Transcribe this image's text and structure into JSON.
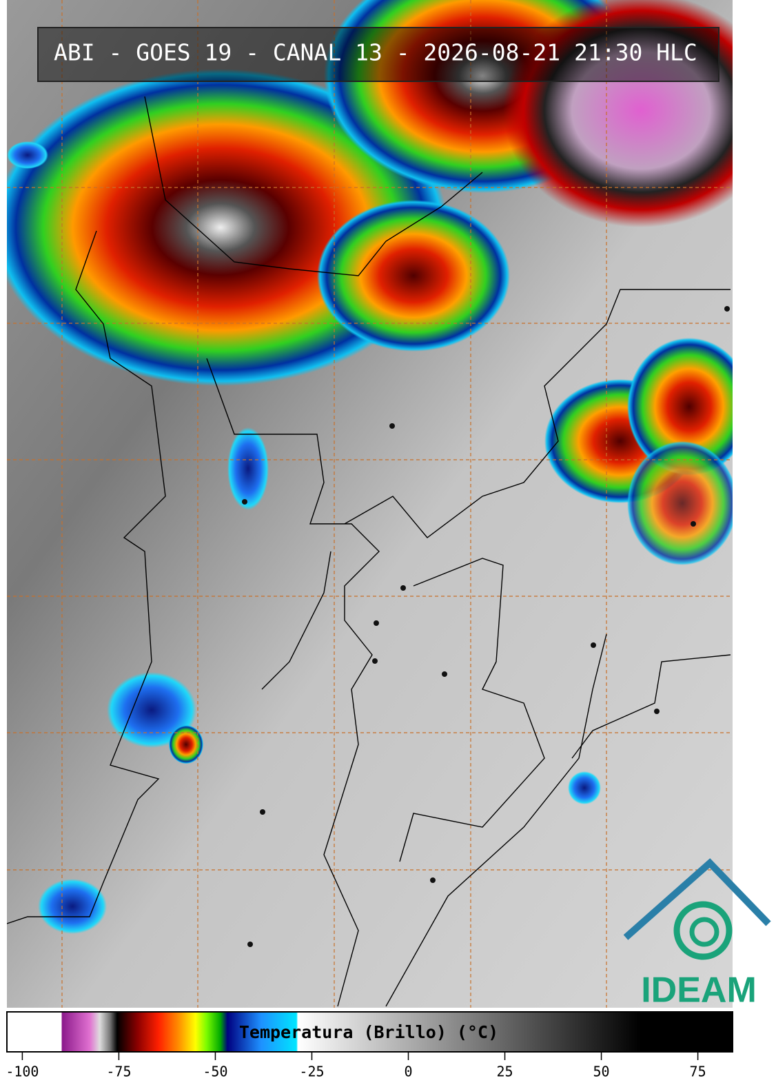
{
  "header": {
    "title": "ABI - GOES 19 - CANAL 13 - 2026-08-21 21:30 HLC"
  },
  "colorbar": {
    "label": "Temperatura (Brillo) (°C)",
    "lim": [
      -104,
      84
    ],
    "ticks": [
      -100,
      -75,
      -50,
      -25,
      0,
      25,
      50,
      75
    ]
  },
  "logo": {
    "text": "IDEAM"
  }
}
